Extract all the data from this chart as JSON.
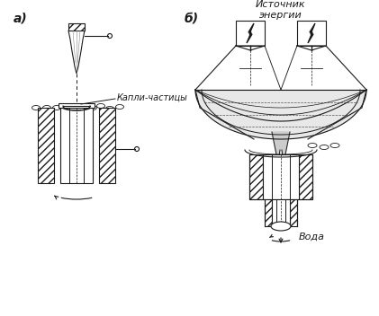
{
  "bg_color": "#ffffff",
  "label_a": "а)",
  "label_b": "б)",
  "text_kapli": "Капли-частицы",
  "text_istochnik": "Источник\nэнергии",
  "text_voda": "Вода",
  "line_color": "#1a1a1a",
  "fig_width": 4.21,
  "fig_height": 3.52,
  "dpi": 100
}
